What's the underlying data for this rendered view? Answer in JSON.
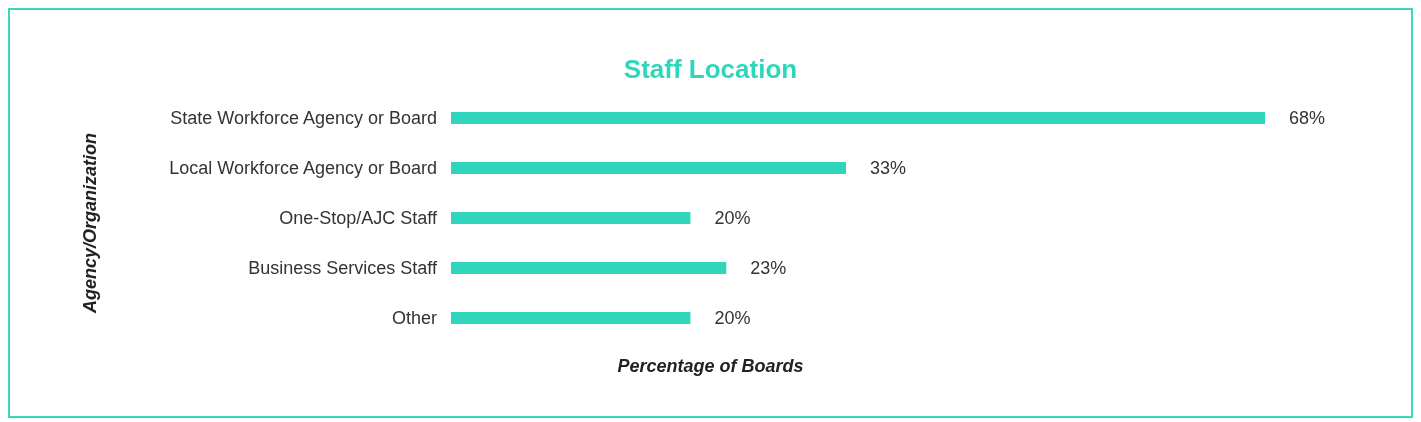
{
  "chart_data": {
    "type": "bar",
    "orientation": "horizontal",
    "title": "Staff Location",
    "xlabel": "Percentage of Boards",
    "ylabel": "Agency/Organization",
    "categories": [
      "State Workforce Agency or Board",
      "Local Workforce Agency or Board",
      "One-Stop/AJC Staff",
      "Business Services Staff",
      "Other"
    ],
    "values": [
      68,
      33,
      20,
      23,
      20
    ],
    "value_labels": [
      "68%",
      "33%",
      "20%",
      "23%",
      "20%"
    ],
    "color": "#2fd6bc",
    "grid": false
  }
}
